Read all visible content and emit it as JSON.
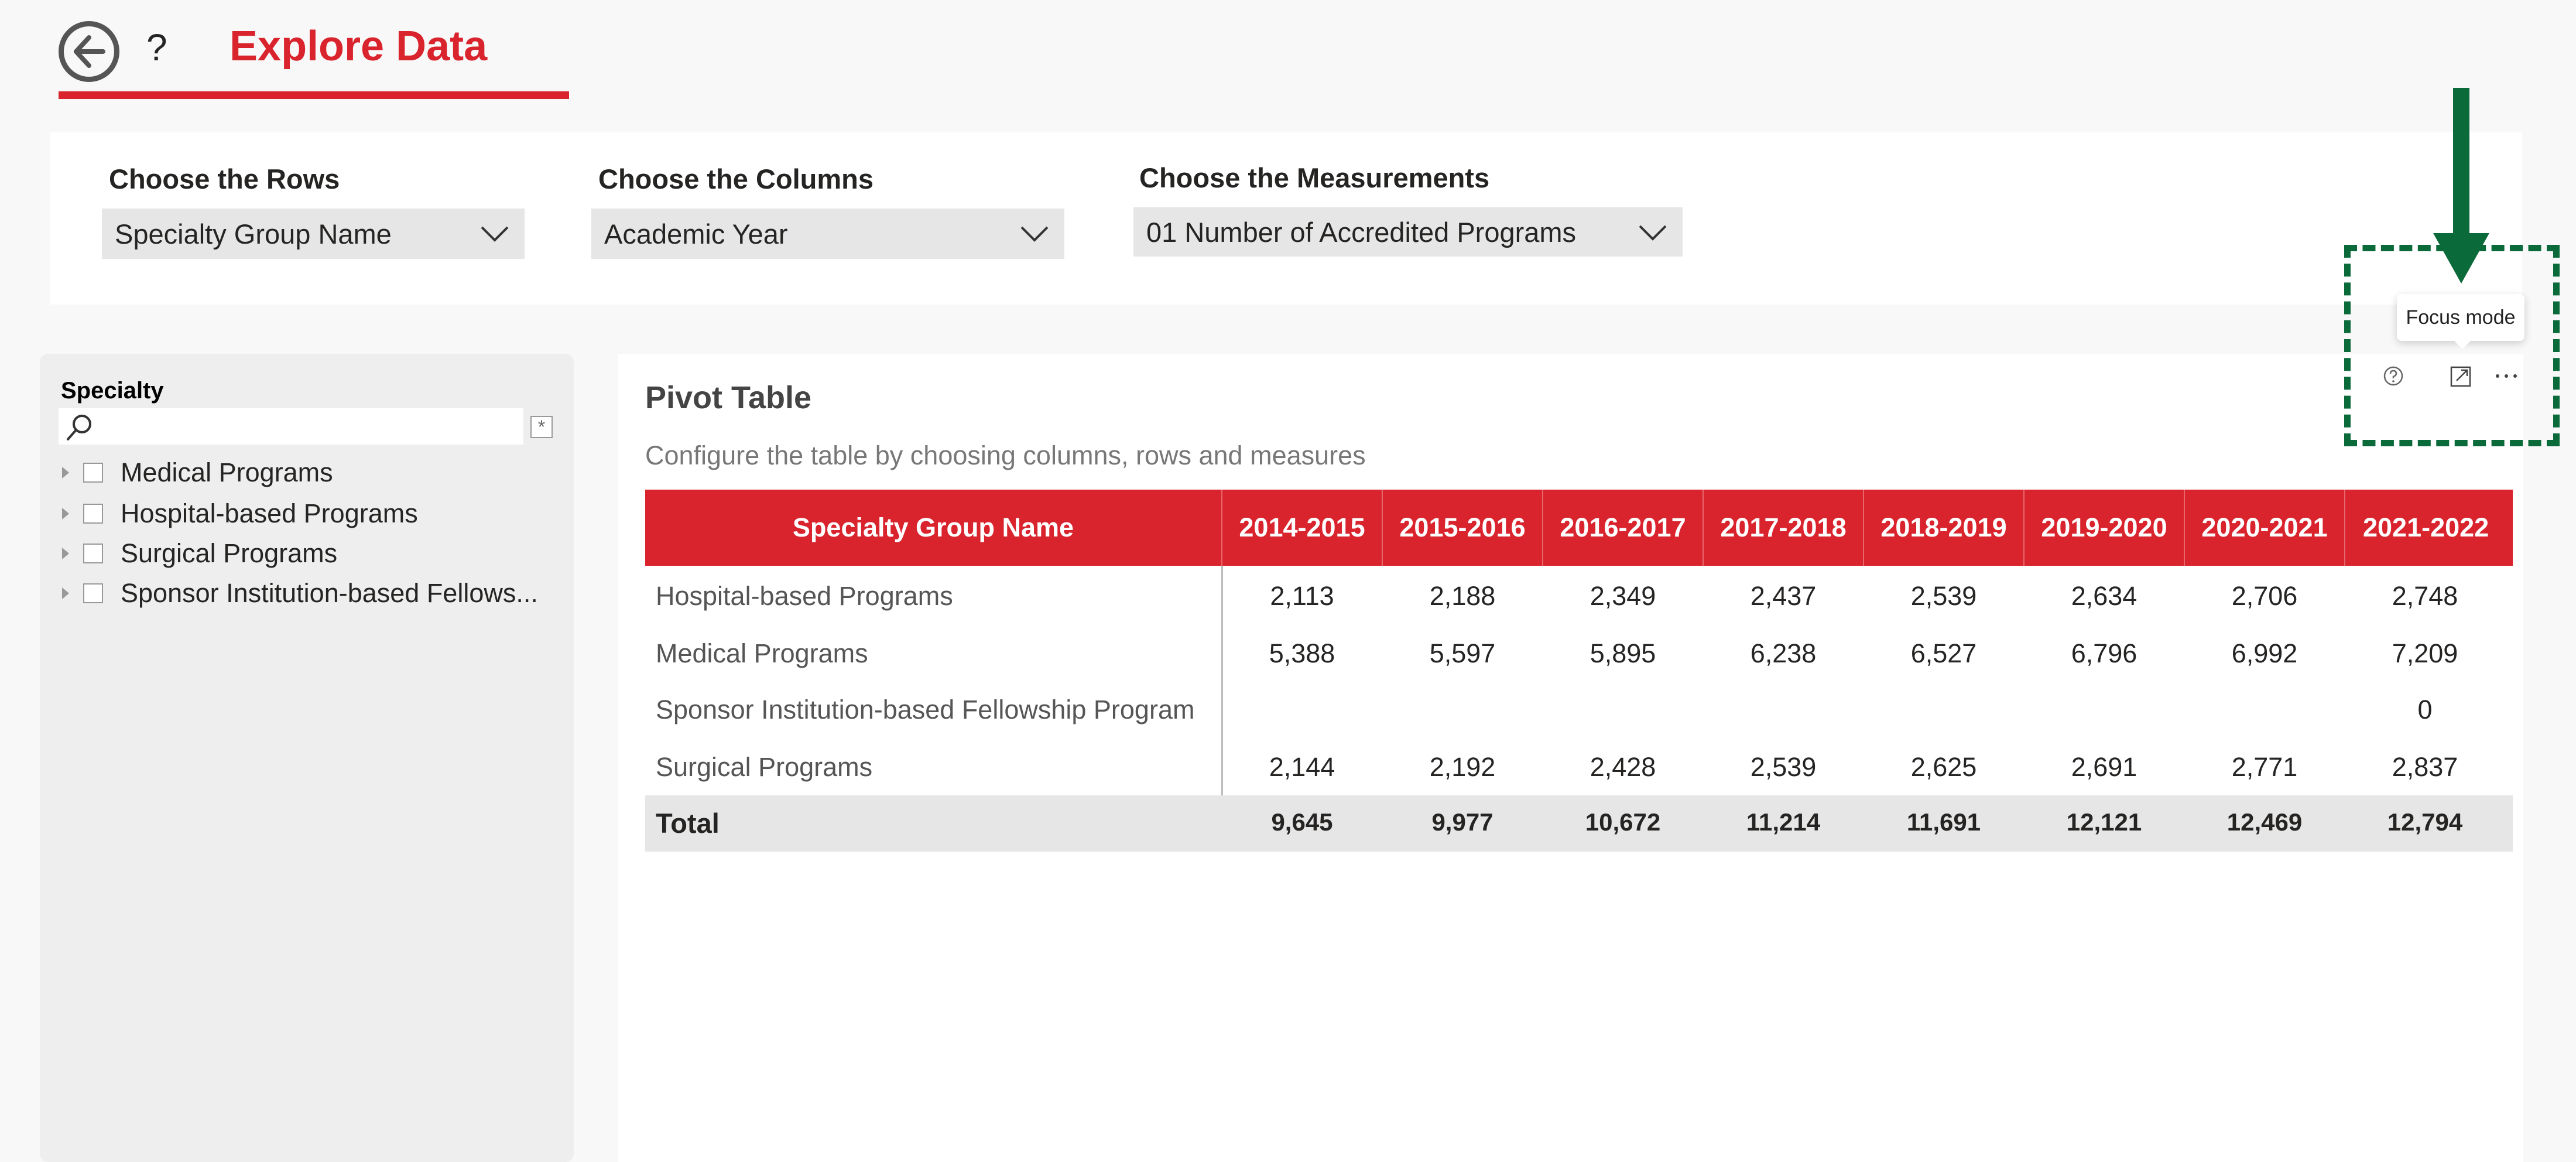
{
  "header": {
    "title": "Explore Data",
    "help_symbol": "?"
  },
  "filters": {
    "rows": {
      "label": "Choose the Rows",
      "value": "Specialty Group Name"
    },
    "columns": {
      "label": "Choose the Columns",
      "value": "Academic Year"
    },
    "measurements": {
      "label": "Choose the Measurements",
      "value": "01 Number of Accredited Programs"
    }
  },
  "slicer": {
    "title": "Specialty",
    "search_value": "",
    "clear_symbol": "*",
    "items": [
      {
        "label": "Medical Programs"
      },
      {
        "label": "Hospital-based Programs"
      },
      {
        "label": "Surgical Programs"
      },
      {
        "label": "Sponsor Institution-based Fellows..."
      }
    ]
  },
  "pivot": {
    "title": "Pivot Table",
    "subtitle": "Configure the table by choosing columns, rows and measures",
    "row_header": "Specialty Group Name",
    "columns": [
      "2014-2015",
      "2015-2016",
      "2016-2017",
      "2017-2018",
      "2018-2019",
      "2019-2020",
      "2020-2021",
      "2021-2022"
    ],
    "rows": [
      {
        "label": "Hospital-based Programs",
        "values": [
          "2,113",
          "2,188",
          "2,349",
          "2,437",
          "2,539",
          "2,634",
          "2,706",
          "2,748"
        ]
      },
      {
        "label": "Medical Programs",
        "values": [
          "5,388",
          "5,597",
          "5,895",
          "6,238",
          "6,527",
          "6,796",
          "6,992",
          "7,209"
        ]
      },
      {
        "label": "Sponsor Institution-based Fellowship Program",
        "values": [
          "",
          "",
          "",
          "",
          "",
          "",
          "",
          "0"
        ]
      },
      {
        "label": "Surgical Programs",
        "values": [
          "2,144",
          "2,192",
          "2,428",
          "2,539",
          "2,625",
          "2,691",
          "2,771",
          "2,837"
        ]
      }
    ],
    "total": {
      "label": "Total",
      "values": [
        "9,645",
        "9,977",
        "10,672",
        "11,214",
        "11,691",
        "12,121",
        "12,469",
        "12,794"
      ]
    }
  },
  "visual_header": {
    "tooltip": "Focus mode",
    "icons": [
      "help-icon",
      "focus-mode-icon",
      "more-options-icon"
    ]
  },
  "colors": {
    "accent": "#d9232d",
    "annotation": "#0b6a3a"
  }
}
